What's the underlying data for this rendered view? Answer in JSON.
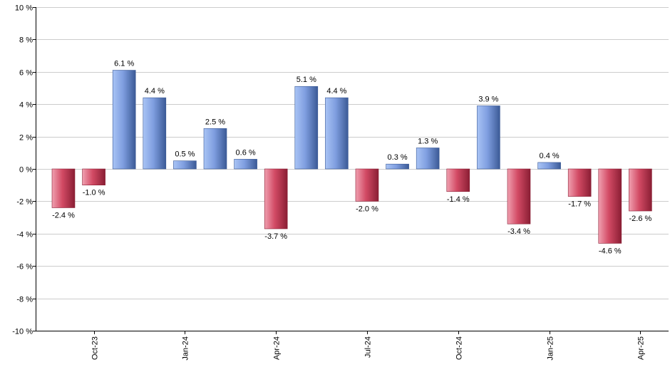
{
  "chart_data": {
    "type": "bar",
    "title": "",
    "xlabel": "",
    "ylabel": "",
    "ylim": [
      -10,
      10
    ],
    "yticks": [
      10,
      8,
      6,
      4,
      2,
      0,
      -2,
      -4,
      -6,
      -8,
      -10
    ],
    "ytick_labels": [
      "10 %",
      "8 %",
      "6 %",
      "4 %",
      "2 %",
      "0 %",
      "-2 %",
      "-4 %",
      "-6 %",
      "-8 %",
      "-10 %"
    ],
    "x_tick_labels": [
      "Oct-23",
      "Jan-24",
      "Apr-24",
      "Jul-24",
      "Oct-24",
      "Jan-25",
      "Apr-25"
    ],
    "x_tick_bar_index": [
      1,
      4,
      7,
      10,
      13,
      16,
      19
    ],
    "values": [
      -2.4,
      -1.0,
      6.1,
      4.4,
      0.5,
      2.5,
      0.6,
      -3.7,
      5.1,
      4.4,
      -2.0,
      0.3,
      1.3,
      -1.4,
      3.9,
      -3.4,
      0.4,
      -1.7,
      -4.6,
      -2.6
    ],
    "data_labels": [
      "-2.4 %",
      "-1.0 %",
      "6.1 %",
      "4.4 %",
      "0.5 %",
      "2.5 %",
      "0.6 %",
      "-3.7 %",
      "5.1 %",
      "4.4 %",
      "-2.0 %",
      "0.3 %",
      "1.3 %",
      "-1.4 %",
      "3.9 %",
      "-3.4 %",
      "0.4 %",
      "-1.7 %",
      "-4.6 %",
      "-2.6 %"
    ],
    "grid": true,
    "legend": "none",
    "colors": {
      "positive_light": "#a9c4f5",
      "positive_mid": "#7f9ee0",
      "positive_dark": "#3b5a96",
      "negative_light": "#f0a0b0",
      "negative_mid": "#d24a64",
      "negative_dark": "#8a1e34",
      "grid": "#cccccc",
      "axis": "#000000"
    }
  }
}
